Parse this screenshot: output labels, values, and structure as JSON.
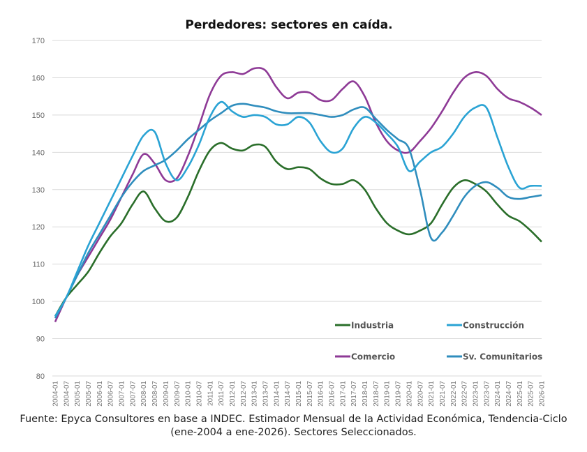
{
  "chart_data": {
    "type": "line",
    "title": "Perdedores: sectores en caída.",
    "ylim": [
      80,
      170
    ],
    "yticks": [
      80,
      90,
      100,
      110,
      120,
      130,
      140,
      150,
      160,
      170
    ],
    "grid": true,
    "legend_placement": "bottom-right",
    "x": [
      "2004-01",
      "2004-07",
      "2005-01",
      "2005-07",
      "2006-01",
      "2006-07",
      "2007-01",
      "2007-07",
      "2008-01",
      "2008-07",
      "2009-01",
      "2009-07",
      "2010-01",
      "2010-07",
      "2011-01",
      "2011-07",
      "2012-01",
      "2012-07",
      "2013-01",
      "2013-07",
      "2014-01",
      "2014-07",
      "2015-01",
      "2015-07",
      "2016-01",
      "2016-07",
      "2017-01",
      "2017-07",
      "2018-01",
      "2018-07",
      "2019-01",
      "2019-07",
      "2020-01",
      "2020-07",
      "2021-01",
      "2021-07",
      "2022-01",
      "2022-07",
      "2023-01",
      "2023-07",
      "2024-01",
      "2024-07",
      "2025-01",
      "2025-07",
      "2026-01"
    ],
    "series": [
      {
        "name": "Industria",
        "color": "#2a6e2a",
        "values": [
          96,
          101,
          104.5,
          108,
          113,
          117.5,
          121,
          126,
          129.5,
          125,
          121.5,
          122.5,
          128,
          135,
          140.5,
          142.5,
          141,
          140.5,
          142,
          141.5,
          137.5,
          135.5,
          136,
          135.5,
          133,
          131.5,
          131.5,
          132.5,
          130,
          125,
          121,
          119,
          118,
          119,
          121,
          126,
          130.5,
          132.5,
          131.5,
          129.5,
          126,
          123,
          121.5,
          119,
          116
        ]
      },
      {
        "name": "Construcción",
        "color": "#2aa3d4",
        "values": [
          96,
          101,
          108,
          115,
          121,
          127,
          133,
          139,
          144.5,
          145.5,
          137,
          132.5,
          136,
          142,
          149.5,
          153.5,
          151,
          149.5,
          150,
          149.5,
          147.5,
          147.5,
          149.5,
          148,
          143,
          140,
          141,
          146.5,
          149.5,
          148,
          145,
          141.5,
          135,
          137.5,
          140,
          141.5,
          145,
          149.5,
          152,
          152,
          144,
          136,
          130.5,
          131,
          131
        ]
      },
      {
        "name": "Comercio",
        "color": "#8e3a96",
        "values": [
          94.5,
          101,
          107,
          112,
          117,
          122,
          128,
          134,
          139.5,
          137,
          132.5,
          133,
          139,
          147,
          155.5,
          160.5,
          161.5,
          161,
          162.5,
          162,
          157.5,
          154.5,
          156,
          156,
          154,
          154,
          157,
          159,
          155,
          148,
          143,
          140.5,
          140,
          143,
          146.5,
          151,
          156,
          160,
          161.5,
          160.5,
          157,
          154.5,
          153.5,
          152,
          150
        ]
      },
      {
        "name": "Sv. Comunitarios",
        "color": "#2f8dbd",
        "values": [
          95.5,
          101,
          107,
          113,
          118,
          123,
          128,
          132,
          135,
          136.5,
          138,
          140.5,
          143.5,
          146,
          148.5,
          150.5,
          152.5,
          153,
          152.5,
          152,
          151,
          150.5,
          150.5,
          150.5,
          150,
          149.5,
          150,
          151.5,
          152,
          149,
          146,
          143.5,
          141,
          130,
          117,
          118.5,
          123,
          128,
          131,
          132,
          130.5,
          128,
          127.5,
          128,
          128.5
        ]
      }
    ]
  },
  "caption": {
    "line1": "Fuente: Epyca Consultores en base a INDEC. Estimador Mensual de la Actividad Económica, Tendencia-Ciclo",
    "line2": "(ene-2004 a ene-2026). Sectores Seleccionados."
  }
}
